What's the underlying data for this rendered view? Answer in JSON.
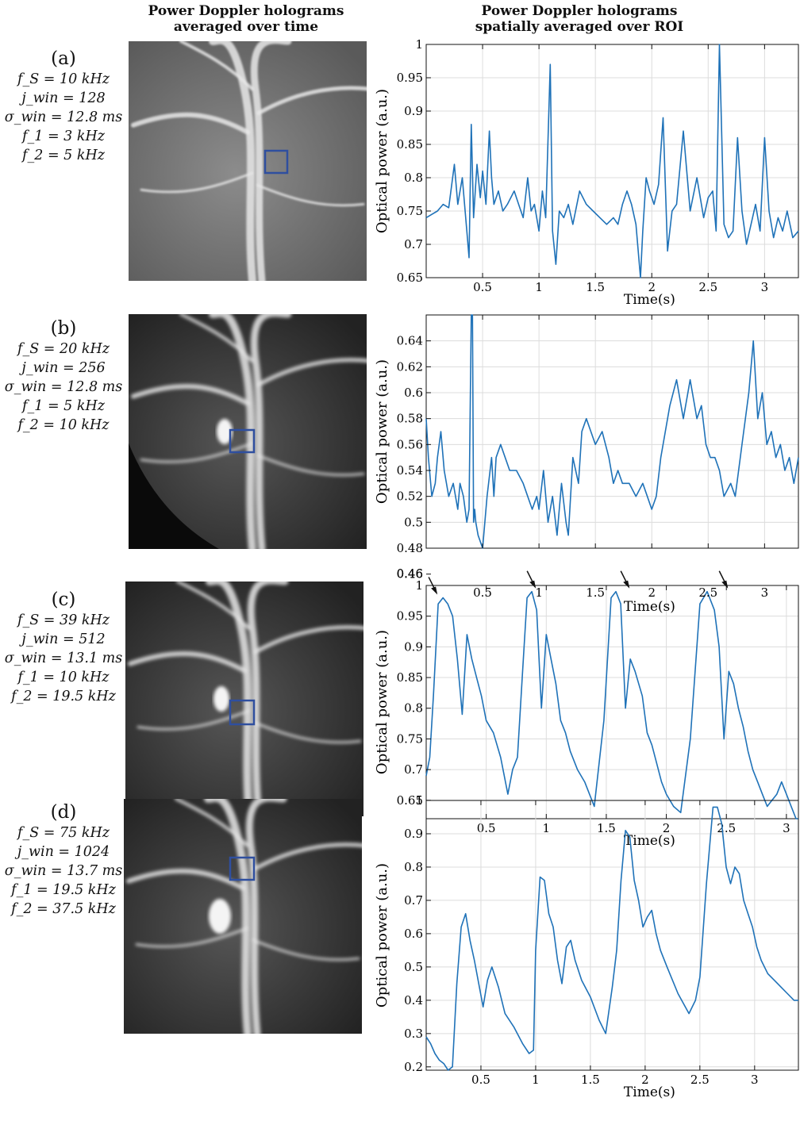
{
  "headers": {
    "left": [
      "Power Doppler holograms",
      "averaged over time"
    ],
    "right": [
      "Power Doppler holograms",
      "spatially averaged over ROI"
    ]
  },
  "colors": {
    "series": "#1f72b8",
    "roi": "#2f4f9f",
    "grid": "#dcdcdc",
    "arrow": "#111111"
  },
  "panels": [
    {
      "label": "(a)",
      "params": {
        "fs": "f_S = 10 kHz",
        "jwin": "j_win = 128",
        "sigma": "σ_win = 12.8 ms",
        "f1": "f_1 = 3 kHz",
        "f2": "f_2 = 5 kHz"
      },
      "image": {
        "description_icon": "vessel-hologram-icon",
        "style": "grainy"
      }
    },
    {
      "label": "(b)",
      "params": {
        "fs": "f_S = 20 kHz",
        "jwin": "j_win = 256",
        "sigma": "σ_win = 12.8 ms",
        "f1": "f_1 = 5 kHz",
        "f2": "f_2 = 10 kHz"
      },
      "image": {
        "description_icon": "vessel-hologram-icon",
        "style": "dark-corner"
      }
    },
    {
      "label": "(c)",
      "params": {
        "fs": "f_S = 39 kHz",
        "jwin": "j_win = 512",
        "sigma": "σ_win = 13.1 ms",
        "f1": "f_1 = 10 kHz",
        "f2": "f_2 = 19.5 kHz"
      },
      "image": {
        "description_icon": "vessel-hologram-icon",
        "style": "dark"
      }
    },
    {
      "label": "(d)",
      "params": {
        "fs": "f_S = 75 kHz",
        "jwin": "j_win = 1024",
        "sigma": "σ_win = 13.7 ms",
        "f1": "f_1 = 19.5 kHz",
        "f2": "f_2 = 37.5 kHz"
      },
      "image": {
        "description_icon": "vessel-hologram-icon",
        "style": "dark"
      }
    }
  ],
  "chart_data": [
    {
      "type": "line",
      "xlabel": "Time(s)",
      "ylabel": "Optical power (a.u.)",
      "xlim": [
        0,
        3.3
      ],
      "ylim": [
        0.65,
        1
      ],
      "xticks": [
        "0.5",
        "1",
        "1.5",
        "2",
        "2.5",
        "3"
      ],
      "yticks": [
        "0.65",
        "0.7",
        "0.75",
        "0.8",
        "0.85",
        "0.9",
        "0.95",
        "1"
      ],
      "grid": true,
      "series": [
        {
          "x": [
            0,
            0.05,
            0.1,
            0.15,
            0.2,
            0.25,
            0.28,
            0.32,
            0.36,
            0.38,
            0.4,
            0.42,
            0.45,
            0.48,
            0.5,
            0.53,
            0.56,
            0.58,
            0.6,
            0.64,
            0.68,
            0.72,
            0.78,
            0.82,
            0.86,
            0.9,
            0.93,
            0.96,
            1.0,
            1.03,
            1.06,
            1.1,
            1.12,
            1.15,
            1.18,
            1.22,
            1.26,
            1.3,
            1.36,
            1.42,
            1.48,
            1.54,
            1.6,
            1.66,
            1.7,
            1.74,
            1.78,
            1.82,
            1.86,
            1.9,
            1.92,
            1.95,
            1.98,
            2.02,
            2.06,
            2.1,
            2.14,
            2.18,
            2.22,
            2.28,
            2.34,
            2.4,
            2.46,
            2.5,
            2.54,
            2.57,
            2.6,
            2.64,
            2.68,
            2.72,
            2.76,
            2.8,
            2.84,
            2.88,
            2.92,
            2.96,
            3.0,
            3.04,
            3.08,
            3.12,
            3.16,
            3.2,
            3.25,
            3.3
          ],
          "y": [
            0.74,
            0.745,
            0.75,
            0.76,
            0.755,
            0.82,
            0.76,
            0.8,
            0.72,
            0.68,
            0.88,
            0.74,
            0.82,
            0.77,
            0.81,
            0.76,
            0.87,
            0.8,
            0.76,
            0.78,
            0.75,
            0.76,
            0.78,
            0.76,
            0.74,
            0.8,
            0.75,
            0.76,
            0.72,
            0.78,
            0.74,
            0.97,
            0.72,
            0.67,
            0.75,
            0.74,
            0.76,
            0.73,
            0.78,
            0.76,
            0.75,
            0.74,
            0.73,
            0.74,
            0.73,
            0.76,
            0.78,
            0.76,
            0.73,
            0.65,
            0.72,
            0.8,
            0.78,
            0.76,
            0.79,
            0.89,
            0.69,
            0.75,
            0.76,
            0.87,
            0.75,
            0.8,
            0.74,
            0.77,
            0.78,
            0.72,
            1.0,
            0.73,
            0.71,
            0.72,
            0.86,
            0.75,
            0.7,
            0.73,
            0.76,
            0.72,
            0.86,
            0.75,
            0.71,
            0.74,
            0.72,
            0.75,
            0.71,
            0.72
          ]
        }
      ]
    },
    {
      "type": "line",
      "xlabel": "Time(s)",
      "ylabel": "Optical power (a.u.)",
      "xlim": [
        0,
        3.3
      ],
      "ylim": [
        0.48,
        0.66
      ],
      "xticks": [
        "0.5",
        "1",
        "1.5",
        "2",
        "2.5",
        "3"
      ],
      "yticks": [
        "0.46",
        "0.48",
        "0.5",
        "0.52",
        "0.54",
        "0.56",
        "0.58",
        "0.6",
        "0.62",
        "0.64"
      ],
      "grid": true,
      "series": [
        {
          "x": [
            0,
            0.02,
            0.05,
            0.08,
            0.1,
            0.13,
            0.16,
            0.2,
            0.24,
            0.28,
            0.3,
            0.33,
            0.36,
            0.38,
            0.4,
            0.41,
            0.42,
            0.43,
            0.44,
            0.46,
            0.5,
            0.54,
            0.58,
            0.6,
            0.62,
            0.66,
            0.7,
            0.74,
            0.8,
            0.86,
            0.9,
            0.94,
            0.98,
            1.0,
            1.04,
            1.08,
            1.12,
            1.16,
            1.2,
            1.24,
            1.26,
            1.3,
            1.35,
            1.38,
            1.42,
            1.46,
            1.5,
            1.56,
            1.62,
            1.66,
            1.7,
            1.74,
            1.8,
            1.86,
            1.92,
            1.96,
            2.0,
            2.04,
            2.08,
            2.12,
            2.16,
            2.22,
            2.28,
            2.34,
            2.4,
            2.44,
            2.48,
            2.52,
            2.56,
            2.6,
            2.64,
            2.7,
            2.74,
            2.8,
            2.86,
            2.9,
            2.94,
            2.98,
            3.02,
            3.06,
            3.1,
            3.14,
            3.18,
            3.22,
            3.26,
            3.3
          ],
          "y": [
            0.58,
            0.55,
            0.52,
            0.53,
            0.55,
            0.57,
            0.54,
            0.52,
            0.53,
            0.51,
            0.53,
            0.52,
            0.5,
            0.51,
            0.66,
            0.66,
            0.5,
            0.51,
            0.5,
            0.49,
            0.48,
            0.52,
            0.55,
            0.52,
            0.55,
            0.56,
            0.55,
            0.54,
            0.54,
            0.53,
            0.52,
            0.51,
            0.52,
            0.51,
            0.54,
            0.5,
            0.52,
            0.49,
            0.53,
            0.5,
            0.49,
            0.55,
            0.53,
            0.57,
            0.58,
            0.57,
            0.56,
            0.57,
            0.55,
            0.53,
            0.54,
            0.53,
            0.53,
            0.52,
            0.53,
            0.52,
            0.51,
            0.52,
            0.55,
            0.57,
            0.59,
            0.61,
            0.58,
            0.61,
            0.58,
            0.59,
            0.56,
            0.55,
            0.55,
            0.54,
            0.52,
            0.53,
            0.52,
            0.56,
            0.6,
            0.64,
            0.58,
            0.6,
            0.56,
            0.57,
            0.55,
            0.56,
            0.54,
            0.55,
            0.53,
            0.55
          ]
        }
      ]
    },
    {
      "type": "line",
      "xlabel": "Time(s)",
      "ylabel": "Optical power (a.u.)",
      "xlim": [
        0,
        3.1
      ],
      "ylim": [
        0.62,
        1
      ],
      "xticks": [
        "0.5",
        "1",
        "1.5",
        "2",
        "2.5",
        "3"
      ],
      "yticks": [
        "0.65",
        "0.7",
        "0.75",
        "0.8",
        "0.85",
        "0.9",
        "0.95",
        "1"
      ],
      "grid": true,
      "annotations": [
        "arrow",
        "arrow",
        "arrow",
        "arrow"
      ],
      "series": [
        {
          "x": [
            0,
            0.03,
            0.06,
            0.1,
            0.14,
            0.18,
            0.22,
            0.26,
            0.3,
            0.34,
            0.38,
            0.42,
            0.46,
            0.5,
            0.56,
            0.62,
            0.68,
            0.72,
            0.76,
            0.8,
            0.84,
            0.88,
            0.92,
            0.96,
            1.0,
            1.04,
            1.08,
            1.12,
            1.16,
            1.2,
            1.26,
            1.32,
            1.4,
            1.48,
            1.54,
            1.58,
            1.62,
            1.66,
            1.7,
            1.74,
            1.8,
            1.84,
            1.88,
            1.92,
            1.96,
            2.0,
            2.06,
            2.12,
            2.2,
            2.28,
            2.34,
            2.4,
            2.44,
            2.48,
            2.52,
            2.56,
            2.6,
            2.64,
            2.68,
            2.72,
            2.76,
            2.8,
            2.84,
            2.88,
            2.92,
            2.96,
            3.0,
            3.04,
            3.08,
            3.1
          ],
          "y": [
            0.69,
            0.72,
            0.82,
            0.97,
            0.98,
            0.97,
            0.95,
            0.88,
            0.79,
            0.92,
            0.88,
            0.85,
            0.82,
            0.78,
            0.76,
            0.72,
            0.66,
            0.7,
            0.72,
            0.85,
            0.98,
            0.99,
            0.96,
            0.8,
            0.92,
            0.88,
            0.84,
            0.78,
            0.76,
            0.73,
            0.7,
            0.68,
            0.64,
            0.78,
            0.98,
            0.99,
            0.97,
            0.8,
            0.88,
            0.86,
            0.82,
            0.76,
            0.74,
            0.71,
            0.68,
            0.66,
            0.64,
            0.63,
            0.75,
            0.97,
            0.99,
            0.96,
            0.9,
            0.75,
            0.86,
            0.84,
            0.8,
            0.77,
            0.73,
            0.7,
            0.68,
            0.66,
            0.64,
            0.65,
            0.66,
            0.68,
            0.66,
            0.64,
            0.62,
            0.62
          ]
        }
      ]
    },
    {
      "type": "line",
      "xlabel": "Time(s)",
      "ylabel": "Optical power (a.u.)",
      "xlim": [
        0,
        3.4
      ],
      "ylim": [
        0.19,
        1
      ],
      "xticks": [
        "0.5",
        "1",
        "1.5",
        "2",
        "2.5",
        "3"
      ],
      "yticks": [
        "0.2",
        "0.3",
        "0.4",
        "0.5",
        "0.6",
        "0.7",
        "0.8",
        "0.9",
        "1"
      ],
      "grid": true,
      "series": [
        {
          "x": [
            0,
            0.04,
            0.08,
            0.12,
            0.16,
            0.2,
            0.24,
            0.28,
            0.32,
            0.36,
            0.4,
            0.44,
            0.48,
            0.52,
            0.56,
            0.6,
            0.66,
            0.72,
            0.8,
            0.88,
            0.94,
            0.98,
            1.0,
            1.04,
            1.08,
            1.12,
            1.16,
            1.2,
            1.24,
            1.28,
            1.32,
            1.36,
            1.42,
            1.5,
            1.58,
            1.64,
            1.7,
            1.74,
            1.78,
            1.82,
            1.86,
            1.9,
            1.94,
            1.98,
            2.02,
            2.06,
            2.1,
            2.14,
            2.2,
            2.3,
            2.4,
            2.46,
            2.5,
            2.56,
            2.62,
            2.66,
            2.7,
            2.74,
            2.78,
            2.82,
            2.86,
            2.9,
            2.94,
            2.98,
            3.02,
            3.06,
            3.12,
            3.18,
            3.24,
            3.3,
            3.36,
            3.4
          ],
          "y": [
            0.29,
            0.27,
            0.24,
            0.22,
            0.21,
            0.19,
            0.2,
            0.45,
            0.62,
            0.66,
            0.58,
            0.52,
            0.45,
            0.38,
            0.46,
            0.5,
            0.44,
            0.36,
            0.32,
            0.27,
            0.24,
            0.25,
            0.55,
            0.77,
            0.76,
            0.66,
            0.62,
            0.52,
            0.45,
            0.56,
            0.58,
            0.52,
            0.46,
            0.41,
            0.34,
            0.3,
            0.44,
            0.55,
            0.76,
            0.91,
            0.89,
            0.76,
            0.7,
            0.62,
            0.65,
            0.67,
            0.6,
            0.55,
            0.5,
            0.42,
            0.36,
            0.4,
            0.47,
            0.75,
            0.98,
            0.98,
            0.93,
            0.8,
            0.75,
            0.8,
            0.78,
            0.7,
            0.66,
            0.62,
            0.56,
            0.52,
            0.48,
            0.46,
            0.44,
            0.42,
            0.4,
            0.4
          ]
        }
      ]
    }
  ]
}
